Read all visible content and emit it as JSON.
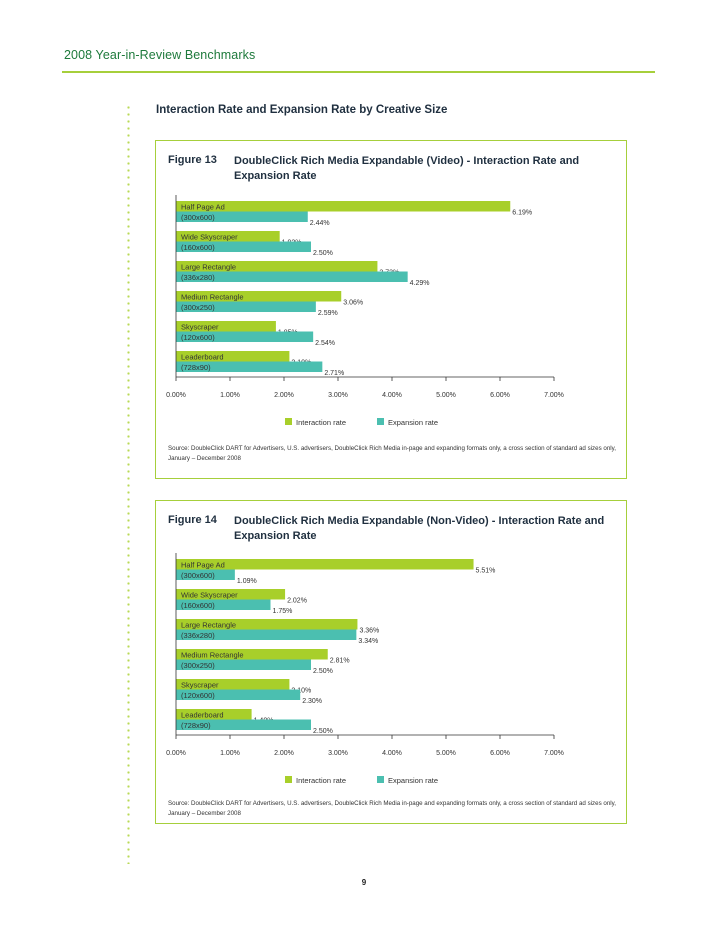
{
  "header": {
    "title": "2008 Year-in-Review Benchmarks"
  },
  "section_title": "Interaction Rate and Expansion Rate by Creative Size",
  "page_number": "9",
  "colors": {
    "interaction": "#a8cf2a",
    "expansion": "#4bbfb0",
    "accent_green": "#1e7a3c",
    "box_border": "#a6cf3b"
  },
  "figures": [
    {
      "label": "Figure 13",
      "title": "DoubleClick Rich Media Expandable (Video) - Interaction Rate and Expansion Rate",
      "source": "Source: DoubleClick DART for Advertisers, U.S. advertisers, DoubleClick Rich Media in-page and expanding formats only, a cross section of standard ad sizes only, January – December 2008"
    },
    {
      "label": "Figure 14",
      "title": "DoubleClick Rich Media Expandable (Non-Video) - Interaction Rate and Expansion Rate",
      "source": "Source: DoubleClick DART for Advertisers, U.S. advertisers, DoubleClick Rich Media in-page and expanding formats only, a cross section of standard ad sizes only, January – December 2008"
    }
  ],
  "chart_data": [
    {
      "type": "bar",
      "orientation": "horizontal",
      "title": "DoubleClick Rich Media Expandable (Video) - Interaction Rate and Expansion Rate",
      "categories": [
        [
          "Half Page Ad",
          "(300x600)"
        ],
        [
          "Wide Skyscraper",
          "(160x600)"
        ],
        [
          "Large Rectangle",
          "(336x280)"
        ],
        [
          "Medium Rectangle",
          "(300x250)"
        ],
        [
          "Skyscraper",
          "(120x600)"
        ],
        [
          "Leaderboard",
          "(728x90)"
        ]
      ],
      "series": [
        {
          "name": "Interaction rate",
          "values": [
            6.19,
            1.92,
            3.73,
            3.06,
            1.85,
            2.1
          ],
          "labels": [
            "6.19%",
            "1.92%",
            "3.73%",
            "3.06%",
            "1.85%",
            "2.10%"
          ]
        },
        {
          "name": "Expansion rate",
          "values": [
            2.44,
            2.5,
            4.29,
            2.59,
            2.54,
            2.71
          ],
          "labels": [
            "2.44%",
            "2.50%",
            "4.29%",
            "2.59%",
            "2.54%",
            "2.71%"
          ]
        }
      ],
      "xlim": [
        0,
        7
      ],
      "xticks": [
        "0.00%",
        "1.00%",
        "2.00%",
        "3.00%",
        "4.00%",
        "5.00%",
        "6.00%",
        "7.00%"
      ],
      "legend": [
        "Interaction rate",
        "Expansion rate"
      ],
      "legend_position": "bottom-center",
      "grid": false
    },
    {
      "type": "bar",
      "orientation": "horizontal",
      "title": "DoubleClick Rich Media Expandable (Non-Video) - Interaction Rate and Expansion Rate",
      "categories": [
        [
          "Half Page Ad",
          "(300x600)"
        ],
        [
          "Wide Skyscraper",
          "(160x600)"
        ],
        [
          "Large Rectangle",
          "(336x280)"
        ],
        [
          "Medium Rectangle",
          "(300x250)"
        ],
        [
          "Skyscraper",
          "(120x600)"
        ],
        [
          "Leaderboard",
          "(728x90)"
        ]
      ],
      "series": [
        {
          "name": "Interaction rate",
          "values": [
            5.51,
            2.02,
            3.36,
            2.81,
            2.1,
            1.4
          ],
          "labels": [
            "5.51%",
            "2.02%",
            "3.36%",
            "2.81%",
            "2.10%",
            "1.40%"
          ]
        },
        {
          "name": "Expansion rate",
          "values": [
            1.09,
            1.75,
            3.34,
            2.5,
            2.3,
            2.5
          ],
          "labels": [
            "1.09%",
            "1.75%",
            "3.34%",
            "2.50%",
            "2.30%",
            "2.50%"
          ]
        }
      ],
      "xlim": [
        0,
        7
      ],
      "xticks": [
        "0.00%",
        "1.00%",
        "2.00%",
        "3.00%",
        "4.00%",
        "5.00%",
        "6.00%",
        "7.00%"
      ],
      "legend": [
        "Interaction rate",
        "Expansion rate"
      ],
      "legend_position": "bottom-center",
      "grid": false
    }
  ]
}
